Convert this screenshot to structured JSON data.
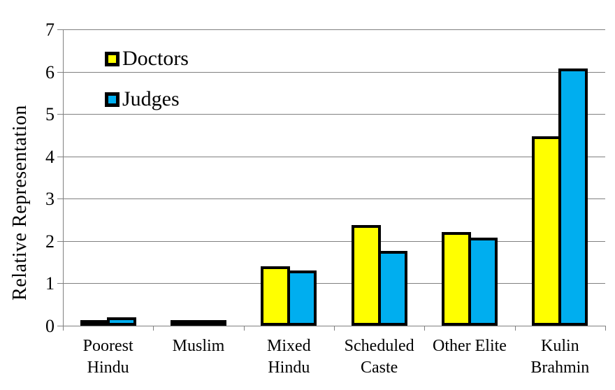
{
  "chart_data": {
    "type": "bar",
    "title": "",
    "xlabel": "",
    "ylabel": "Relative Representation",
    "ylim": [
      0,
      7
    ],
    "yticks": [
      0,
      1,
      2,
      3,
      4,
      5,
      6,
      7
    ],
    "grid": true,
    "legend_position": "top-left-inside",
    "categories": [
      "Poorest Hindu",
      "Muslim",
      "Mixed Hindu",
      "Scheduled Caste",
      "Other Elite",
      "Kulin Brahmin"
    ],
    "category_label_lines": [
      [
        "Poorest",
        "Hindu"
      ],
      [
        "Muslim"
      ],
      [
        "Mixed",
        "Hindu"
      ],
      [
        "Scheduled",
        "Caste"
      ],
      [
        "Other Elite"
      ],
      [
        "Kulin",
        "Brahmin"
      ]
    ],
    "series": [
      {
        "name": "Doctors",
        "color": "#FFFF00",
        "values": [
          0.1,
          0.12,
          1.4,
          2.38,
          2.22,
          4.47
        ]
      },
      {
        "name": "Judges",
        "color": "#00AEEF",
        "values": [
          0.2,
          0.14,
          1.3,
          1.77,
          2.08,
          6.08
        ]
      }
    ],
    "bar_border_color": "#000000",
    "gridline_color": "#808080"
  }
}
